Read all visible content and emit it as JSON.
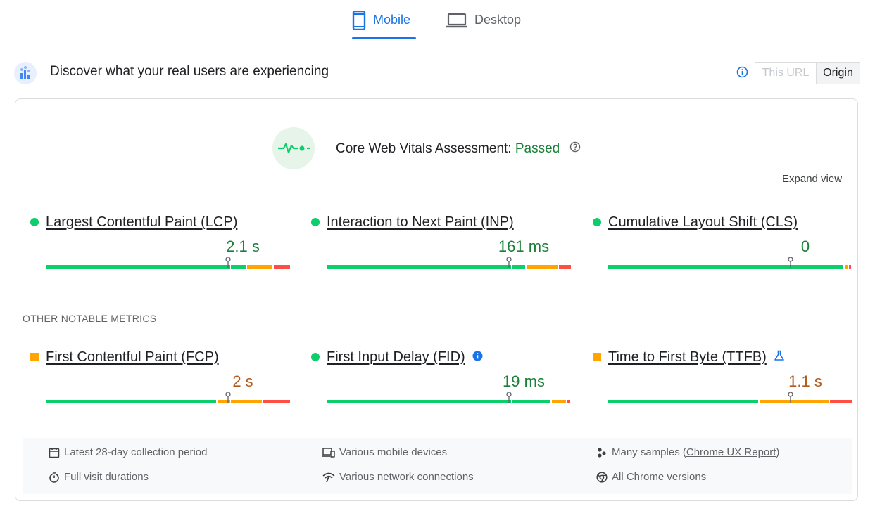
{
  "tabs": [
    {
      "label": "Mobile",
      "icon": "smartphone-icon",
      "active": true
    },
    {
      "label": "Desktop",
      "icon": "laptop-icon",
      "active": false
    }
  ],
  "header": {
    "title": "Discover what your real users are experiencing",
    "toggle": {
      "this_url": "This URL",
      "origin": "Origin",
      "selected": "Origin"
    }
  },
  "assessment": {
    "label": "Core Web Vitals Assessment: ",
    "status": "Passed",
    "expand": "Expand view"
  },
  "core_metrics": [
    {
      "name": "Largest Contentful Paint (LCP)",
      "value": "2.1 s",
      "rating": "good"
    },
    {
      "name": "Interaction to Next Paint (INP)",
      "value": "161 ms",
      "rating": "good"
    },
    {
      "name": "Cumulative Layout Shift (CLS)",
      "value": "0",
      "rating": "good"
    }
  ],
  "other_label": "OTHER NOTABLE METRICS",
  "other_metrics": [
    {
      "name": "First Contentful Paint (FCP)",
      "value": "2 s",
      "rating": "needs-improvement"
    },
    {
      "name": "First Input Delay (FID)",
      "value": "19 ms",
      "rating": "good"
    },
    {
      "name": "Time to First Byte (TTFB)",
      "value": "1.1 s",
      "rating": "needs-improvement"
    }
  ],
  "footer": {
    "period": "Latest 28-day collection period",
    "devices": "Various mobile devices",
    "samples_prefix": "Many samples (",
    "samples_link": "Chrome UX Report",
    "samples_suffix": ")",
    "durations": "Full visit durations",
    "connections": "Various network connections",
    "versions": "All Chrome versions"
  },
  "colors": {
    "good": "#0cce6b",
    "average": "#ffa400",
    "poor": "#ff4e42",
    "accent": "#1a73e8",
    "passed": "#188038"
  }
}
